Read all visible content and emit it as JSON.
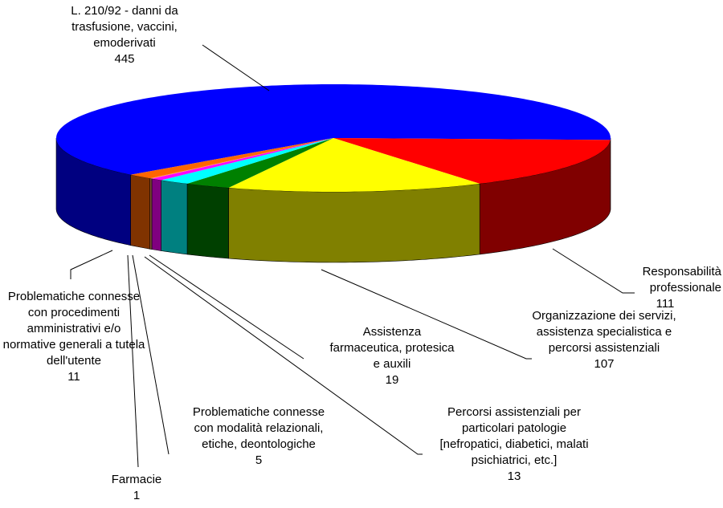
{
  "chart_data": {
    "type": "pie3d",
    "categories": [
      "L. 210/92 - danni da trasfusione, vaccini, emoderivati",
      "Responsabilità professionale",
      "Organizzazione dei servizi, assistenza specialistica e percorsi assistenziali",
      "Assistenza farmaceutica, protesica e auxili",
      "Percorsi assistenziali per particolari patologie [nefropatici, diabetici, malati psichiatrici, etc.]",
      "Problematiche connesse con modalità relazionali, etiche, deontologiche",
      "Farmacie",
      "Problematiche connesse con procedimenti amministrativi e/o normative generali a tutela dell'utente"
    ],
    "values": [
      445,
      111,
      107,
      19,
      13,
      5,
      1,
      11
    ],
    "colors": [
      "#0000ff",
      "#ff0000",
      "#ffff00",
      "#008000",
      "#00ffff",
      "#ff00ff",
      "#ff9966",
      "#ff6600"
    ]
  }
}
